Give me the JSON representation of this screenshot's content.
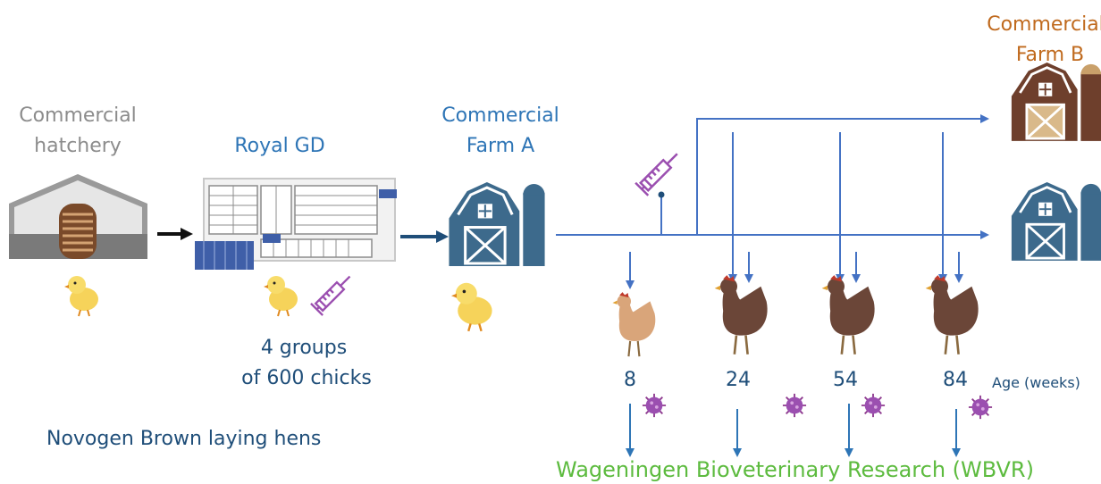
{
  "nodes": [
    {
      "label": [
        "Commercial",
        "hatchery"
      ]
    },
    {
      "label": [
        "Royal GD"
      ]
    },
    {
      "label": [
        "Commercial",
        "Farm A"
      ]
    },
    {
      "label": [
        "Commercial",
        "Farm B"
      ]
    }
  ],
  "groups": [
    "4 groups",
    "of 600 chicks"
  ],
  "breed": "Novogen Brown laying hens",
  "sampling": {
    "ages": [
      "8",
      "24",
      "54",
      "84"
    ],
    "age_label": "Age (weeks)"
  },
  "lab": "Wageningen Bioveterinary Research (WBVR)"
}
